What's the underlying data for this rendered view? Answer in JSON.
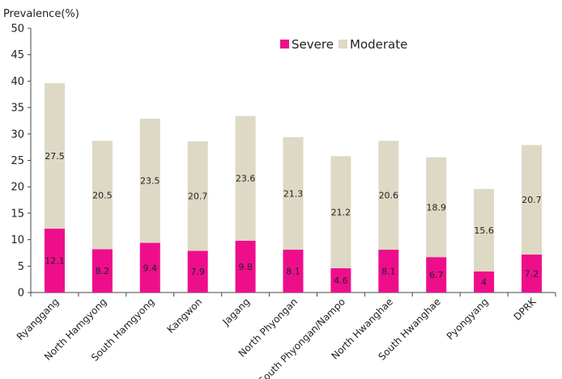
{
  "chart_data": {
    "type": "bar",
    "stacked": true,
    "ylabel": "Prevalence(%)",
    "xlabel": "",
    "ylim": [
      0,
      50
    ],
    "yticks": [
      0,
      5,
      10,
      15,
      20,
      25,
      30,
      35,
      40,
      45,
      50
    ],
    "grid": false,
    "legend_position": "top-right",
    "categories": [
      "Ryanggang",
      "North Hamgyong",
      "South Hamgyong",
      "Kangwon",
      "Jagang",
      "North Phyongan",
      "South Phyongan/Nampo",
      "North Hwanghae",
      "South Hwanghae",
      "Pyongyang",
      "DPRK"
    ],
    "series": [
      {
        "name": "Severe",
        "color": "#ee0e8c",
        "values": [
          12.1,
          8.2,
          9.4,
          7.9,
          9.8,
          8.1,
          4.6,
          8.1,
          6.7,
          4,
          7.2
        ]
      },
      {
        "name": "Moderate",
        "color": "#ddd9c4",
        "values": [
          27.5,
          20.5,
          23.5,
          20.7,
          23.6,
          21.3,
          21.2,
          20.6,
          18.9,
          15.6,
          20.7
        ]
      }
    ]
  }
}
